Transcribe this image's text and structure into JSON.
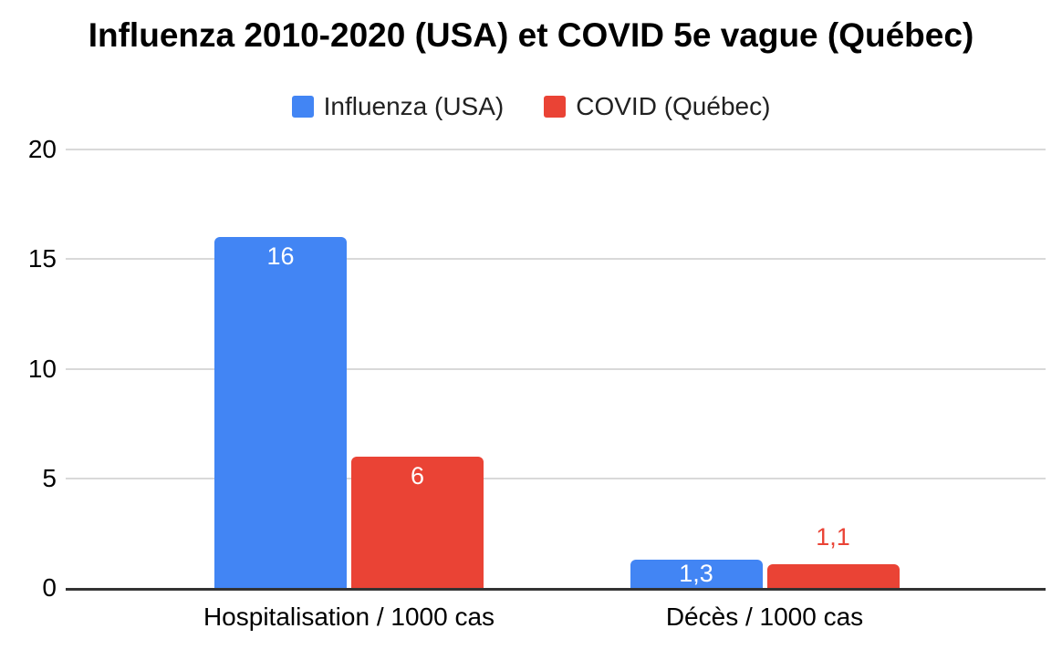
{
  "chart_data": {
    "type": "bar",
    "title": "Influenza 2010-2020 (USA) et COVID 5e vague (Québec)",
    "categories": [
      "Hospitalisation / 1000 cas",
      "Décès / 1000 cas"
    ],
    "series": [
      {
        "name": "Influenza (USA)",
        "color": "#4285F4",
        "values": [
          16,
          1.3
        ],
        "labels": [
          "16",
          "1,3"
        ]
      },
      {
        "name": "COVID (Québec)",
        "color": "#EA4335",
        "values": [
          6,
          1.1
        ],
        "labels": [
          "6",
          "1,1"
        ]
      }
    ],
    "y_axis": {
      "min": 0,
      "max": 20,
      "ticks": [
        0,
        5,
        10,
        15,
        20
      ]
    },
    "xlabel": "",
    "ylabel": "",
    "legend_position": "top",
    "grid": true,
    "palette": {
      "background": "#ffffff",
      "grid": "#d9d9d9",
      "axis_line": "#333333",
      "tick_text": "#000000",
      "title_text": "#000000",
      "label_inside": "#ffffff"
    }
  }
}
